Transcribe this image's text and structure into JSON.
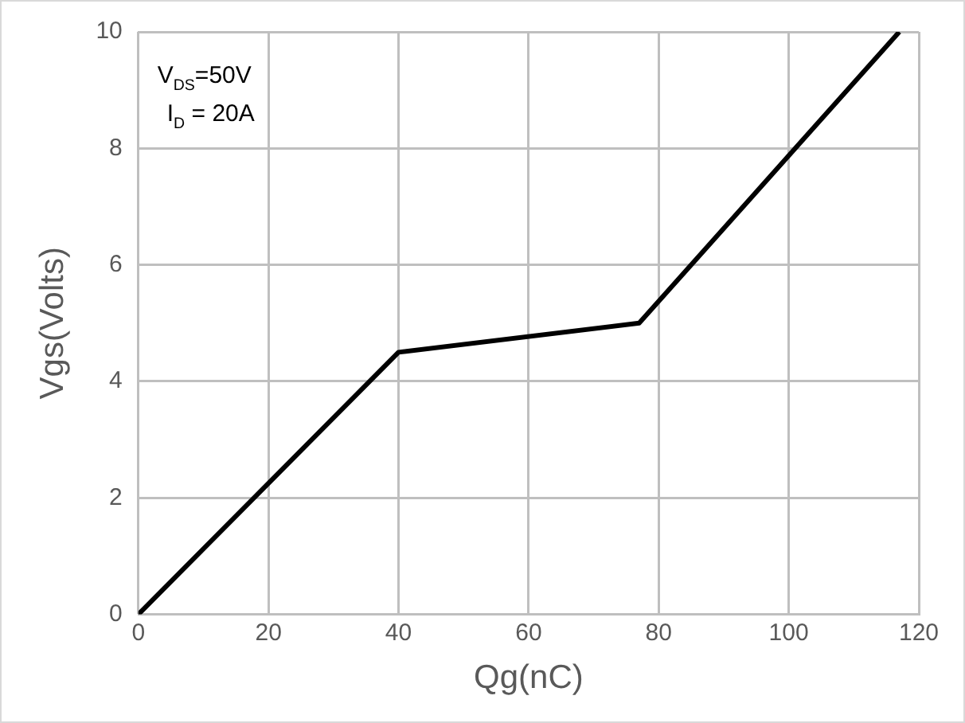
{
  "chart_data": {
    "type": "line",
    "xlabel": "Qg(nC)",
    "ylabel": "Vgs(Volts)",
    "annotations": [
      "V$_{DS}$=50V",
      "I$_{D}$ = 20A"
    ],
    "series": [
      {
        "color": "#000000",
        "x": [
          0,
          40,
          77,
          117
        ],
        "values": [
          0,
          4.5,
          5,
          10
        ]
      }
    ],
    "xlim": [
      0,
      120
    ],
    "xticks": [
      0,
      20,
      40,
      60,
      80,
      100,
      120
    ],
    "ylim": [
      0,
      10
    ],
    "yticks": [
      0,
      2,
      4,
      6,
      8,
      10
    ],
    "grid": true,
    "legend": false,
    "marker": "none",
    "line_style": "solid"
  }
}
